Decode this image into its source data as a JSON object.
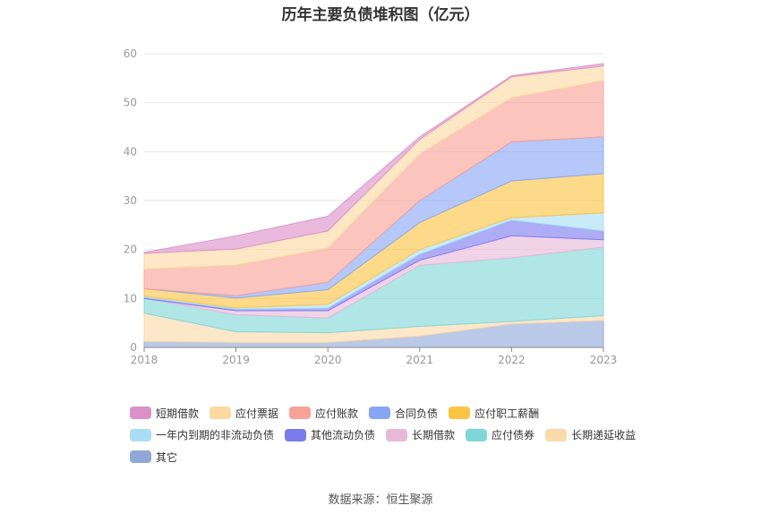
{
  "title": "历年主要负债堆积图（亿元）",
  "source": "数据来源：恒生聚源",
  "chart_data": {
    "type": "area",
    "stacked": true,
    "x": [
      "2018",
      "2019",
      "2020",
      "2021",
      "2022",
      "2023"
    ],
    "ylim": [
      0,
      60
    ],
    "yticks": [
      0,
      10,
      20,
      30,
      40,
      50,
      60
    ],
    "grid": true,
    "legend_position": "bottom",
    "series": [
      {
        "name": "其它",
        "color": "#8fa8d8",
        "values": [
          1.2,
          1.0,
          1.0,
          2.3,
          4.8,
          5.5
        ]
      },
      {
        "name": "长期递延收益",
        "color": "#fcd9a8",
        "values": [
          5.8,
          2.2,
          2.0,
          2.0,
          0.5,
          1.0
        ]
      },
      {
        "name": "应付债券",
        "color": "#7fd6d6",
        "values": [
          3.0,
          3.5,
          3.0,
          12.5,
          13.0,
          14.0
        ]
      },
      {
        "name": "长期借款",
        "color": "#e8b8d8",
        "values": [
          0.0,
          0.8,
          1.5,
          1.0,
          4.5,
          1.5
        ]
      },
      {
        "name": "其他流动负债",
        "color": "#7b7bf0",
        "values": [
          0.2,
          0.3,
          0.5,
          1.2,
          3.2,
          1.8
        ]
      },
      {
        "name": "一年内到期的非流动负债",
        "color": "#a8ddf5",
        "values": [
          0.3,
          0.3,
          0.8,
          1.0,
          0.5,
          3.7
        ]
      },
      {
        "name": "应付职工薪酬",
        "color": "#fbc441",
        "values": [
          1.5,
          2.0,
          3.0,
          5.5,
          7.5,
          8.0
        ]
      },
      {
        "name": "合同负债",
        "color": "#87a7f5",
        "values": [
          0.0,
          0.5,
          1.5,
          4.5,
          8.0,
          7.5
        ]
      },
      {
        "name": "应付账款",
        "color": "#f8a196",
        "values": [
          4.0,
          6.2,
          7.0,
          9.5,
          9.0,
          11.5
        ]
      },
      {
        "name": "应付票据",
        "color": "#fcd9a0",
        "values": [
          3.2,
          3.3,
          3.5,
          3.0,
          4.3,
          3.0
        ]
      },
      {
        "name": "短期借款",
        "color": "#dc90c8",
        "values": [
          0.2,
          2.7,
          3.0,
          0.5,
          0.2,
          0.5
        ]
      }
    ]
  },
  "legend": [
    [
      "短期借款",
      "应付票据",
      "应付账款",
      "合同负债",
      "应付职工薪酬"
    ],
    [
      "一年内到期的非流动负债",
      "其他流动负债",
      "长期借款",
      "应付债券",
      "长期递延收益"
    ],
    [
      "其它"
    ]
  ]
}
